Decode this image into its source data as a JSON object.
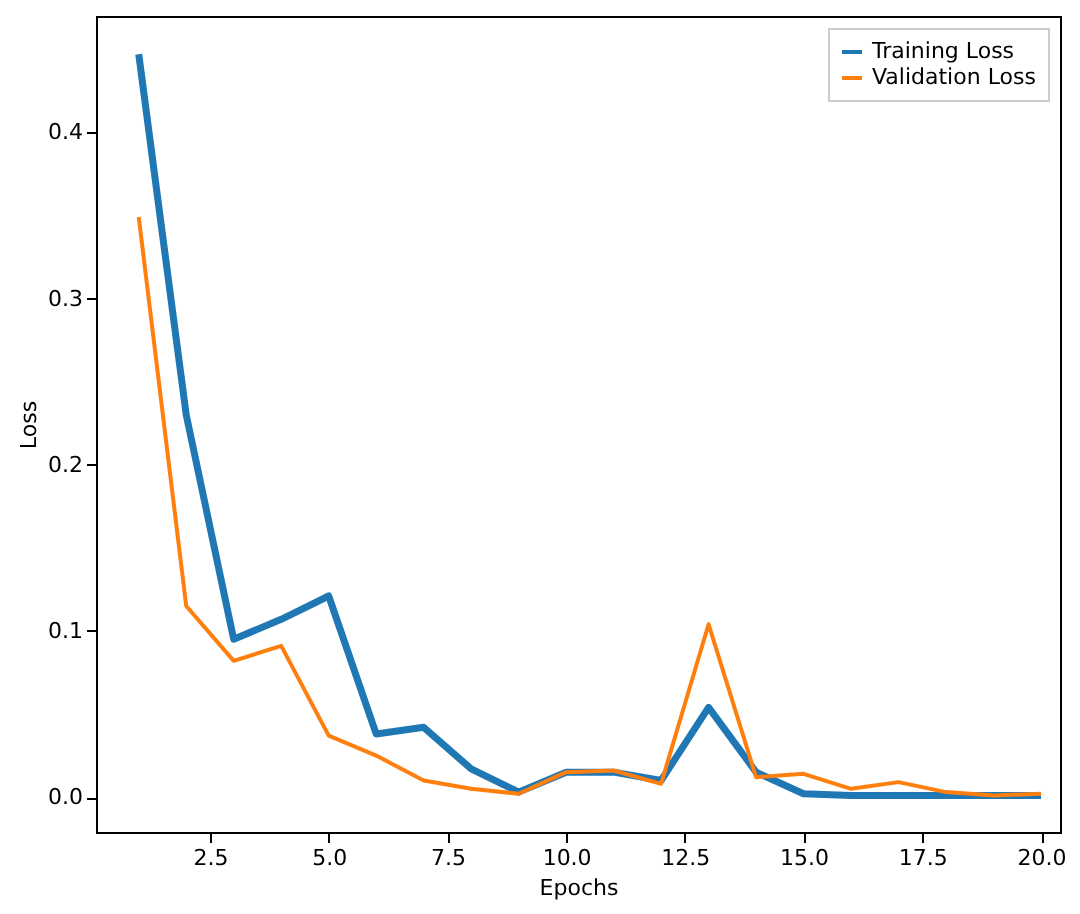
{
  "chart_data": {
    "type": "line",
    "xlabel": "Epochs",
    "ylabel": "Loss",
    "x": [
      1,
      2,
      3,
      4,
      5,
      6,
      7,
      8,
      9,
      10,
      11,
      12,
      13,
      14,
      15,
      16,
      17,
      18,
      19,
      20
    ],
    "series": [
      {
        "name": "Training Loss",
        "color": "#1f77b4",
        "values": [
          0.447,
          0.23,
          0.095,
          0.107,
          0.121,
          0.038,
          0.042,
          0.017,
          0.003,
          0.015,
          0.015,
          0.01,
          0.054,
          0.015,
          0.002,
          0.001,
          0.001,
          0.001,
          0.001,
          0.001
        ]
      },
      {
        "name": "Validation Loss",
        "color": "#ff7f0e",
        "values": [
          0.349,
          0.115,
          0.082,
          0.091,
          0.037,
          0.025,
          0.01,
          0.005,
          0.002,
          0.015,
          0.016,
          0.008,
          0.104,
          0.012,
          0.014,
          0.005,
          0.009,
          0.003,
          0.001,
          0.002
        ]
      }
    ],
    "xlim": [
      0.1,
      20.4
    ],
    "xticks": [
      {
        "value": 2.5,
        "label": "2.5"
      },
      {
        "value": 5,
        "label": "5.0"
      },
      {
        "value": 7.5,
        "label": "7.5"
      },
      {
        "value": 10,
        "label": "10.0"
      },
      {
        "value": 12.5,
        "label": "12.5"
      },
      {
        "value": 15,
        "label": "15.0"
      },
      {
        "value": 17.5,
        "label": "17.5"
      },
      {
        "value": 20,
        "label": "20.0"
      }
    ],
    "ylim": [
      -0.021,
      0.47
    ],
    "yticks": [
      {
        "value": 0,
        "label": "0.0"
      },
      0.1,
      0.2,
      0.3,
      0.4
    ],
    "grid": false,
    "legend": "top right",
    "marker": "none",
    "line_style": "solid"
  }
}
